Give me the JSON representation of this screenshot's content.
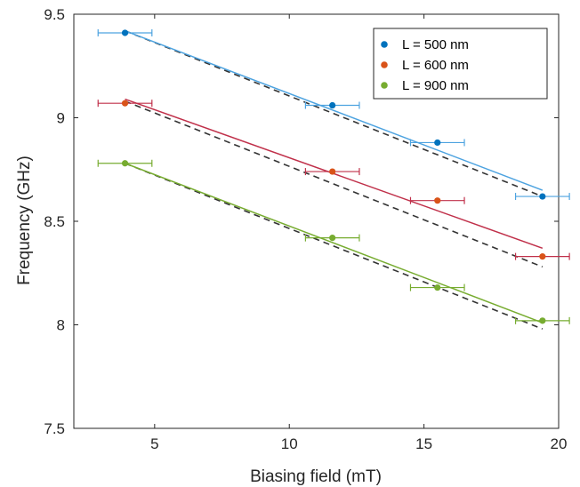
{
  "chart_data": {
    "type": "scatter",
    "xlabel": "Biasing field (mT)",
    "ylabel": "Frequency (GHz)",
    "xlim": [
      2,
      20
    ],
    "ylim": [
      7.5,
      9.5
    ],
    "xticks": [
      5,
      10,
      15,
      20
    ],
    "yticks": [
      7.5,
      8,
      8.5,
      9,
      9.5
    ],
    "xtick_labels": [
      "5",
      "10",
      "15",
      "20"
    ],
    "ytick_labels": [
      "7.5",
      "8",
      "8.5",
      "9",
      "9.5"
    ],
    "grid": false,
    "legend_position": "top-right",
    "series": [
      {
        "name": "L = 500 nm",
        "color": "#0072BD",
        "fit_color": "#4DA3E0",
        "points": [
          {
            "x": 3.9,
            "y": 9.41,
            "xerr": 1.0
          },
          {
            "x": 11.6,
            "y": 9.06,
            "xerr": 1.0
          },
          {
            "x": 15.5,
            "y": 8.88,
            "xerr": 1.0
          },
          {
            "x": 19.4,
            "y": 8.62,
            "xerr": 1.0
          }
        ],
        "fit_line": [
          [
            3.9,
            9.42
          ],
          [
            19.4,
            8.65
          ]
        ],
        "model_line": [
          [
            3.9,
            9.42
          ],
          [
            19.4,
            8.62
          ]
        ]
      },
      {
        "name": "L = 600 nm",
        "color": "#D95319",
        "fit_color": "#C0304A",
        "points": [
          {
            "x": 3.9,
            "y": 9.07,
            "xerr": 1.0
          },
          {
            "x": 11.6,
            "y": 8.74,
            "xerr": 1.0
          },
          {
            "x": 15.5,
            "y": 8.6,
            "xerr": 1.0
          },
          {
            "x": 19.4,
            "y": 8.33,
            "xerr": 1.0
          }
        ],
        "fit_line": [
          [
            3.9,
            9.09
          ],
          [
            19.4,
            8.37
          ]
        ],
        "model_line": [
          [
            3.9,
            9.08
          ],
          [
            19.4,
            8.28
          ]
        ]
      },
      {
        "name": "L = 900 nm",
        "color": "#77AC30",
        "fit_color": "#77AC30",
        "points": [
          {
            "x": 3.9,
            "y": 8.78,
            "xerr": 1.0
          },
          {
            "x": 11.6,
            "y": 8.42,
            "xerr": 1.0
          },
          {
            "x": 15.5,
            "y": 8.18,
            "xerr": 1.0
          },
          {
            "x": 19.4,
            "y": 8.02,
            "xerr": 1.0
          }
        ],
        "fit_line": [
          [
            3.9,
            8.78
          ],
          [
            19.4,
            8.01
          ]
        ],
        "model_line": [
          [
            3.9,
            8.78
          ],
          [
            19.4,
            7.98
          ]
        ]
      }
    ]
  }
}
